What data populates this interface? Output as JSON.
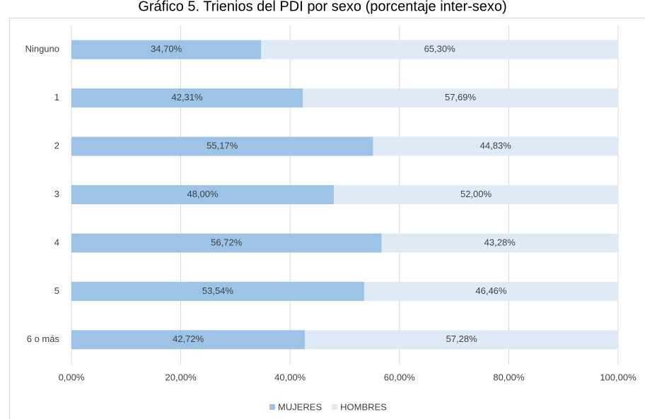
{
  "chart_data": {
    "type": "stacked_barh",
    "title": "Gráfico 5. Trienios del PDI por sexo (porcentaje inter-sexo)",
    "categories": [
      "Ninguno",
      "1",
      "2",
      "3",
      "4",
      "5",
      "6 o más"
    ],
    "series": [
      {
        "name": "MUJERES",
        "color": "#9dc3e6",
        "values": [
          34.7,
          42.31,
          55.17,
          48.0,
          56.72,
          53.54,
          42.72
        ],
        "value_labels": [
          "34,70%",
          "42,31%",
          "55,17%",
          "48,00%",
          "56,72%",
          "53,54%",
          "42,72%"
        ]
      },
      {
        "name": "HOMBRES",
        "color": "#deebf7",
        "values": [
          65.3,
          57.69,
          44.83,
          52.0,
          43.28,
          46.46,
          57.28
        ],
        "value_labels": [
          "65,30%",
          "57,69%",
          "44,83%",
          "52,00%",
          "43,28%",
          "46,46%",
          "57,28%"
        ]
      }
    ],
    "xlim": [
      0,
      100
    ],
    "xticks": [
      {
        "value": 0,
        "label": "0,00%"
      },
      {
        "value": 20,
        "label": "20,00%"
      },
      {
        "value": 40,
        "label": "40,00%"
      },
      {
        "value": 60,
        "label": "60,00%"
      },
      {
        "value": 80,
        "label": "80,00%"
      },
      {
        "value": 100,
        "label": "100,00%"
      }
    ],
    "grid": true,
    "legend": "bottom"
  }
}
